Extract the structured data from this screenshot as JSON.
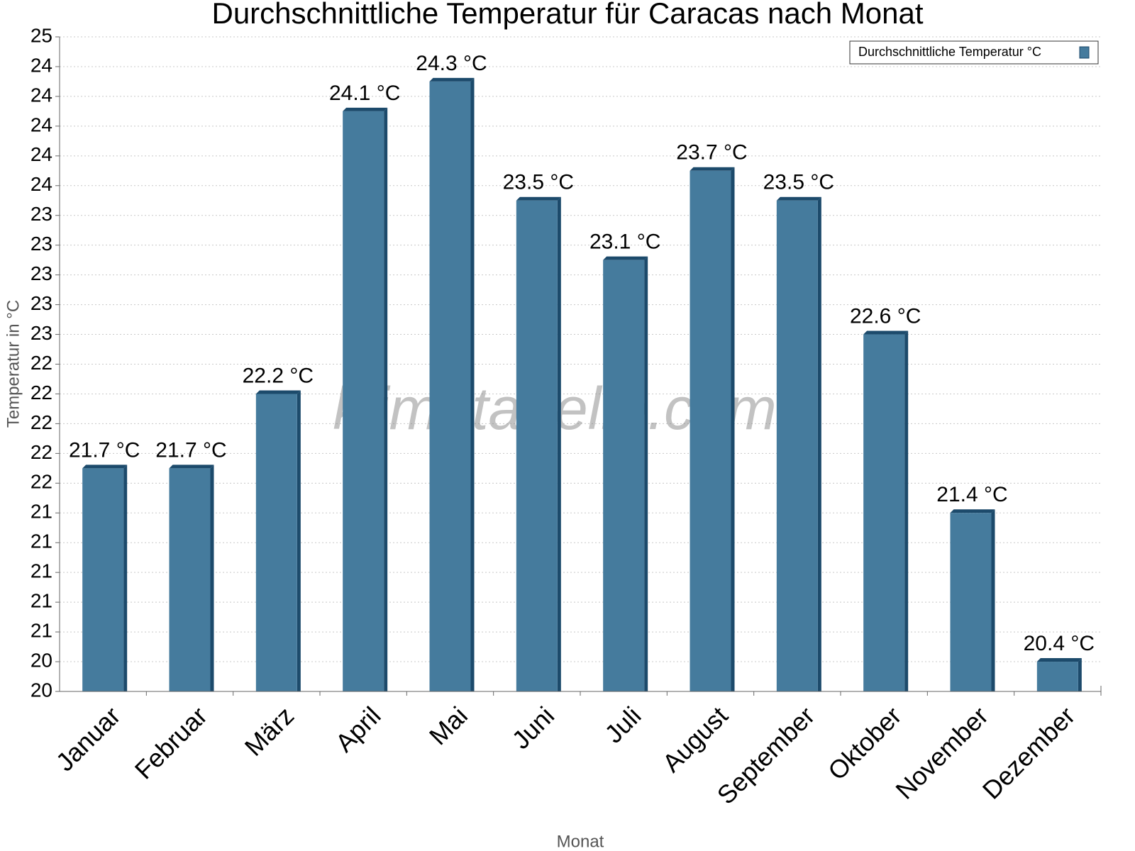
{
  "chart_data": {
    "type": "bar",
    "title": "Durchschnittliche Temperatur für Caracas nach Monat",
    "x_label": "Monat",
    "y_label": "Temperatur in °C",
    "watermark": "klimatabelle.com",
    "categories": [
      "Januar",
      "Februar",
      "März",
      "April",
      "Mai",
      "Juni",
      "Juli",
      "August",
      "September",
      "Oktober",
      "November",
      "Dezember"
    ],
    "series": [
      {
        "name": "Durchschnittliche Temperatur °C",
        "color": "#457b9d",
        "values": [
          21.7,
          21.7,
          22.2,
          24.1,
          24.3,
          23.5,
          23.1,
          23.7,
          23.5,
          22.6,
          21.4,
          20.4
        ],
        "value_labels": [
          "21.7 °C",
          "21.7 °C",
          "22.2 °C",
          "24.1 °C",
          "24.3 °C",
          "23.5 °C",
          "23.1 °C",
          "23.7 °C",
          "23.5 °C",
          "22.6 °C",
          "21.4 °C",
          "20.4 °C"
        ]
      }
    ],
    "ylim": [
      20.2,
      24.6
    ],
    "yticks": [
      {
        "value": 20.2,
        "label": "20"
      },
      {
        "value": 20.4,
        "label": "20"
      },
      {
        "value": 20.6,
        "label": "21"
      },
      {
        "value": 20.8,
        "label": "21"
      },
      {
        "value": 21.0,
        "label": "21"
      },
      {
        "value": 21.2,
        "label": "21"
      },
      {
        "value": 21.4,
        "label": "21"
      },
      {
        "value": 21.6,
        "label": "22"
      },
      {
        "value": 21.8,
        "label": "22"
      },
      {
        "value": 22.0,
        "label": "22"
      },
      {
        "value": 22.2,
        "label": "22"
      },
      {
        "value": 22.4,
        "label": "22"
      },
      {
        "value": 22.6,
        "label": "23"
      },
      {
        "value": 22.8,
        "label": "23"
      },
      {
        "value": 23.0,
        "label": "23"
      },
      {
        "value": 23.2,
        "label": "23"
      },
      {
        "value": 23.4,
        "label": "23"
      },
      {
        "value": 23.6,
        "label": "24"
      },
      {
        "value": 23.8,
        "label": "24"
      },
      {
        "value": 24.0,
        "label": "24"
      },
      {
        "value": 24.2,
        "label": "24"
      },
      {
        "value": 24.4,
        "label": "24"
      },
      {
        "value": 24.6,
        "label": "25"
      }
    ],
    "grid": true,
    "legend_position": "upper right"
  }
}
